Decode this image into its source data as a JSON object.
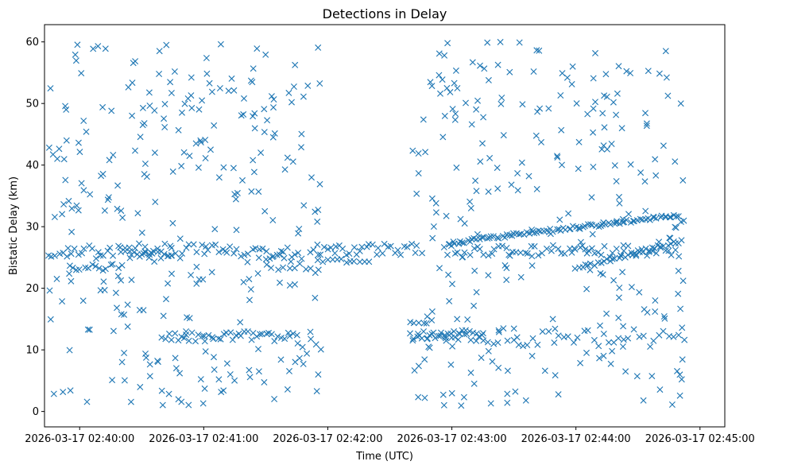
{
  "chart_data": {
    "type": "scatter",
    "title": "Detections in Delay",
    "xlabel": "Time (UTC)",
    "ylabel": "Bistatic Delay (km)",
    "marker": "x",
    "color": "#1f77b4",
    "xlim_seconds": [
      -17,
      312
    ],
    "ylim": [
      -2.5,
      62.8
    ],
    "x_ticks": [
      {
        "seconds": 0,
        "label": "2026-03-17 02:40:00"
      },
      {
        "seconds": 60,
        "label": "2026-03-17 02:41:00"
      },
      {
        "seconds": 120,
        "label": "2026-03-17 02:42:00"
      },
      {
        "seconds": 180,
        "label": "2026-03-17 02:43:00"
      },
      {
        "seconds": 240,
        "label": "2026-03-17 02:44:00"
      },
      {
        "seconds": 300,
        "label": "2026-03-17 02:45:00"
      }
    ],
    "y_ticks": [
      0,
      10,
      20,
      30,
      40,
      50,
      60
    ],
    "x_origin": "2026-03-17 02:40:00",
    "x_unit": "seconds since x_origin",
    "series": [
      {
        "name": "detections",
        "tracks": [
          {
            "t0": -15,
            "t1": 106,
            "y0": 26.0,
            "y1": 26.0,
            "n": 70,
            "jitter": 1.3
          },
          {
            "t0": 112,
            "t1": 165,
            "y0": 26.3,
            "y1": 26.3,
            "n": 35,
            "jitter": 0.9
          },
          {
            "t0": 176,
            "t1": 290,
            "y0": 26.0,
            "y1": 26.0,
            "n": 65,
            "jitter": 1.0
          },
          {
            "t0": 178,
            "t1": 290,
            "y0": 27.3,
            "y1": 31.9,
            "n": 95,
            "jitter": 0.3
          },
          {
            "t0": 240,
            "t1": 290,
            "y0": 23.2,
            "y1": 27.6,
            "n": 35,
            "jitter": 0.3
          },
          {
            "t0": -5,
            "t1": 20,
            "y0": 23.5,
            "y1": 23.5,
            "n": 15,
            "jitter": 0.6
          },
          {
            "t0": 20,
            "t1": 45,
            "y0": 25.6,
            "y1": 25.6,
            "n": 14,
            "jitter": 0.4
          },
          {
            "t0": 40,
            "t1": 105,
            "y0": 12.2,
            "y1": 12.2,
            "n": 45,
            "jitter": 0.8
          },
          {
            "t0": 160,
            "t1": 195,
            "y0": 12.3,
            "y1": 12.3,
            "n": 38,
            "jitter": 1.0
          },
          {
            "t0": 160,
            "t1": 170,
            "y0": 14.6,
            "y1": 14.6,
            "n": 6,
            "jitter": 0.3
          },
          {
            "t0": 195,
            "t1": 290,
            "y0": 12.0,
            "y1": 12.0,
            "n": 40,
            "jitter": 1.6
          },
          {
            "t0": 115,
            "t1": 140,
            "y0": 24.5,
            "y1": 24.5,
            "n": 12,
            "jitter": 0.4
          },
          {
            "t0": 90,
            "t1": 115,
            "y0": 23.5,
            "y1": 23.5,
            "n": 10,
            "jitter": 0.5
          }
        ],
        "scattered": {
          "segments": [
            {
              "t0": -15,
              "t1": 117,
              "count": 290
            },
            {
              "t0": 161,
              "t1": 295,
              "count": 260
            }
          ],
          "y_range": [
            0.5,
            60
          ],
          "seed": 20260317
        }
      }
    ]
  }
}
